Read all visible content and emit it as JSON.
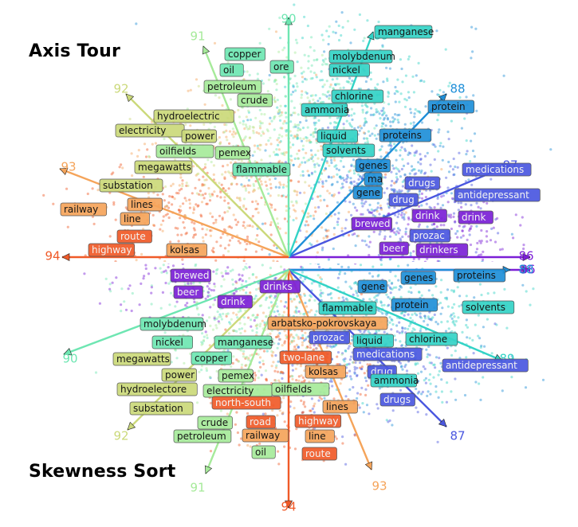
{
  "titles": {
    "top": "Axis Tour",
    "bottom": "Skewness Sort"
  },
  "colors": {
    "a86": "#7b1fd6",
    "a87": "#4a57e0",
    "a88": "#1e8fd8",
    "a89": "#33d3c6",
    "a90": "#6ee6b2",
    "a91": "#a6ea9a",
    "a92": "#cbd97a",
    "a93": "#f5a45a",
    "a94": "#f05a28"
  },
  "top_axes": [
    {
      "label": "86",
      "color": "a86"
    },
    {
      "label": "87",
      "color": "a87"
    },
    {
      "label": "88",
      "color": "a88"
    },
    {
      "label": "89",
      "color": "a89"
    },
    {
      "label": "90",
      "color": "a90"
    },
    {
      "label": "91",
      "color": "a91"
    },
    {
      "label": "92",
      "color": "a92"
    },
    {
      "label": "93",
      "color": "a93"
    },
    {
      "label": "94",
      "color": "a94"
    }
  ],
  "bottom_axes": [
    {
      "label": "86",
      "color": "a86"
    },
    {
      "label": "88",
      "color": "a88"
    },
    {
      "label": "89",
      "color": "a89"
    },
    {
      "label": "87",
      "color": "a87"
    },
    {
      "label": "93",
      "color": "a93"
    },
    {
      "label": "94",
      "color": "a94"
    },
    {
      "label": "91",
      "color": "a91"
    },
    {
      "label": "92",
      "color": "a92"
    },
    {
      "label": "90",
      "color": "a90"
    }
  ],
  "top_words": [
    {
      "text": "manganese",
      "color": "a89"
    },
    {
      "text": "molybdenum",
      "color": "a89"
    },
    {
      "text": "nickel",
      "color": "a89"
    },
    {
      "text": "copper",
      "color": "a90"
    },
    {
      "text": "oil",
      "color": "a90"
    },
    {
      "text": "ore",
      "color": "a90"
    },
    {
      "text": "petroleum",
      "color": "a91"
    },
    {
      "text": "crude",
      "color": "a91"
    },
    {
      "text": "chlorine",
      "color": "a89"
    },
    {
      "text": "ammonia",
      "color": "a89"
    },
    {
      "text": "protein",
      "color": "a88"
    },
    {
      "text": "proteins",
      "color": "a88"
    },
    {
      "text": "liquid",
      "color": "a89"
    },
    {
      "text": "solvents",
      "color": "a89"
    },
    {
      "text": "hydroelectric",
      "color": "a92"
    },
    {
      "text": "electricity",
      "color": "a92"
    },
    {
      "text": "power",
      "color": "a92"
    },
    {
      "text": "oilfields",
      "color": "a91"
    },
    {
      "text": "pemex",
      "color": "a91"
    },
    {
      "text": "megawatts",
      "color": "a92"
    },
    {
      "text": "flammable",
      "color": "a90"
    },
    {
      "text": "medications",
      "color": "a87"
    },
    {
      "text": "genes",
      "color": "a88"
    },
    {
      "text": "ma",
      "color": "a88"
    },
    {
      "text": "drugs",
      "color": "a87"
    },
    {
      "text": "gene",
      "color": "a88"
    },
    {
      "text": "antidepressant",
      "color": "a87"
    },
    {
      "text": "drug",
      "color": "a87"
    },
    {
      "text": "substation",
      "color": "a92"
    },
    {
      "text": "lines",
      "color": "a93"
    },
    {
      "text": "railway",
      "color": "a93"
    },
    {
      "text": "line",
      "color": "a93"
    },
    {
      "text": "brewed",
      "color": "a86"
    },
    {
      "text": "drink",
      "color": "a86"
    },
    {
      "text": "drink",
      "color": "a86"
    },
    {
      "text": "route",
      "color": "a94"
    },
    {
      "text": "prozac",
      "color": "a87"
    },
    {
      "text": "highway",
      "color": "a94"
    },
    {
      "text": "kolsas",
      "color": "a93"
    },
    {
      "text": "beer",
      "color": "a86"
    },
    {
      "text": "drinkers",
      "color": "a86"
    }
  ],
  "bottom_words": [
    {
      "text": "brewed",
      "color": "a86"
    },
    {
      "text": "drinks",
      "color": "a86"
    },
    {
      "text": "genes",
      "color": "a88"
    },
    {
      "text": "proteins",
      "color": "a88"
    },
    {
      "text": "gene",
      "color": "a88"
    },
    {
      "text": "beer",
      "color": "a86"
    },
    {
      "text": "drink",
      "color": "a86"
    },
    {
      "text": "protein",
      "color": "a88"
    },
    {
      "text": "flammable",
      "color": "a89"
    },
    {
      "text": "solvents",
      "color": "a89"
    },
    {
      "text": "molybdenum",
      "color": "a90"
    },
    {
      "text": "arbatsko-pokrovskaya",
      "color": "a93"
    },
    {
      "text": "nickel",
      "color": "a90"
    },
    {
      "text": "manganese",
      "color": "a90"
    },
    {
      "text": "prozac",
      "color": "a87"
    },
    {
      "text": "liquid",
      "color": "a89"
    },
    {
      "text": "chlorine",
      "color": "a89"
    },
    {
      "text": "megawatts",
      "color": "a92"
    },
    {
      "text": "copper",
      "color": "a90"
    },
    {
      "text": "two-lane",
      "color": "a94"
    },
    {
      "text": "medications",
      "color": "a87"
    },
    {
      "text": "antidepressant",
      "color": "a87"
    },
    {
      "text": "power",
      "color": "a92"
    },
    {
      "text": "pemex",
      "color": "a91"
    },
    {
      "text": "kolsas",
      "color": "a93"
    },
    {
      "text": "drug",
      "color": "a87"
    },
    {
      "text": "ammonia",
      "color": "a89"
    },
    {
      "text": "hydroelectore",
      "color": "a92"
    },
    {
      "text": "electricity",
      "color": "a91"
    },
    {
      "text": "oilfields",
      "color": "a91"
    },
    {
      "text": "drugs",
      "color": "a87"
    },
    {
      "text": "north-south",
      "color": "a94"
    },
    {
      "text": "lines",
      "color": "a93"
    },
    {
      "text": "substation",
      "color": "a92"
    },
    {
      "text": "crude",
      "color": "a91"
    },
    {
      "text": "road",
      "color": "a94"
    },
    {
      "text": "highway",
      "color": "a94"
    },
    {
      "text": "petroleum",
      "color": "a91"
    },
    {
      "text": "railway",
      "color": "a93"
    },
    {
      "text": "line",
      "color": "a93"
    },
    {
      "text": "oil",
      "color": "a91"
    },
    {
      "text": "route",
      "color": "a94"
    }
  ]
}
